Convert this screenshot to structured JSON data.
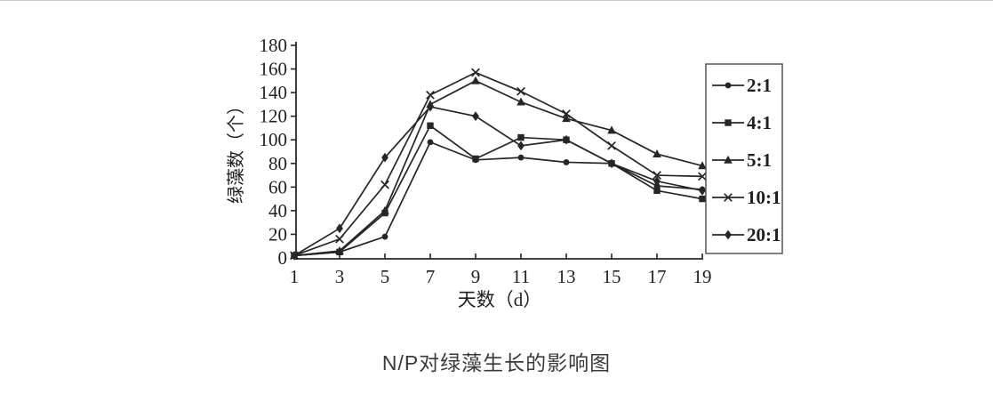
{
  "page": {
    "caption": "N/P对绿藻生长的影响图"
  },
  "chart_data": {
    "type": "line",
    "title": "N/P对绿藻生长的影响图",
    "xlabel": "天数（d）",
    "ylabel": "绿藻数（个）",
    "x": [
      1,
      3,
      5,
      7,
      9,
      11,
      13,
      15,
      17,
      19
    ],
    "xlim": [
      1,
      19
    ],
    "ylim": [
      0,
      180
    ],
    "ytick_step": 20,
    "yticks": [
      0,
      20,
      40,
      60,
      80,
      100,
      120,
      140,
      160,
      180
    ],
    "grid": false,
    "legend_position": "right-outside",
    "line_color": "#262626",
    "series": [
      {
        "name": "2:1",
        "marker": "circle",
        "values": [
          2,
          5,
          18,
          98,
          83,
          85,
          81,
          80,
          61,
          58
        ]
      },
      {
        "name": "4:1",
        "marker": "square",
        "values": [
          2,
          5,
          38,
          112,
          84,
          102,
          100,
          80,
          57,
          50
        ]
      },
      {
        "name": "5:1",
        "marker": "triangle",
        "values": [
          2,
          6,
          40,
          130,
          150,
          132,
          118,
          108,
          88,
          78
        ]
      },
      {
        "name": "10:1",
        "marker": "x",
        "values": [
          2,
          16,
          62,
          138,
          157,
          141,
          122,
          95,
          70,
          69
        ]
      },
      {
        "name": "20:1",
        "marker": "diamond",
        "values": [
          2,
          25,
          85,
          128,
          120,
          95,
          100,
          80,
          65,
          57
        ]
      }
    ]
  }
}
